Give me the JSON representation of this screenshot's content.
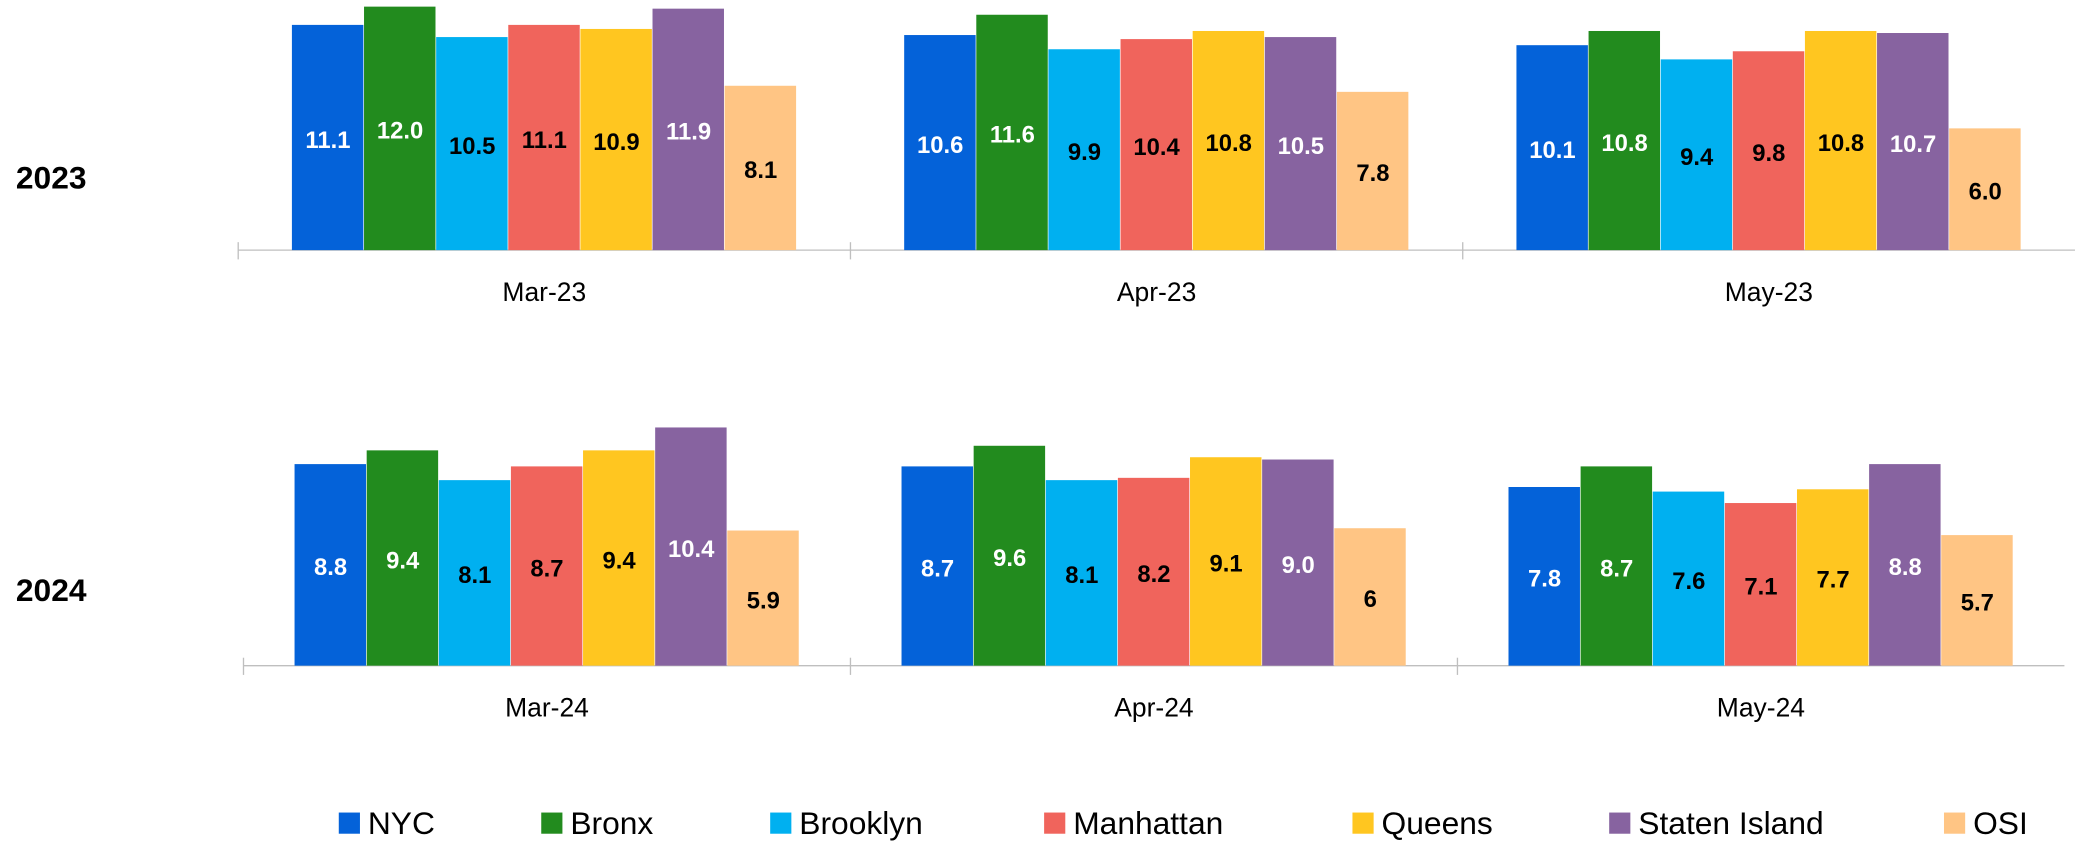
{
  "chart_data": [
    {
      "type": "bar",
      "title": "2023",
      "categories": [
        "Mar-23",
        "Apr-23",
        "May-23"
      ],
      "series": [
        {
          "name": "NYC",
          "color": "#0462D9",
          "values": [
            11.1,
            10.6,
            10.1
          ],
          "value_labels": [
            "11.1",
            "10.6",
            "10.1"
          ]
        },
        {
          "name": "Bronx",
          "color": "#228B1E",
          "values": [
            12.0,
            11.6,
            10.8
          ],
          "value_labels": [
            "12.0",
            "11.6",
            "10.8"
          ]
        },
        {
          "name": "Brooklyn",
          "color": "#00B0F0",
          "values": [
            10.5,
            9.9,
            9.4
          ],
          "value_labels": [
            "10.5",
            "9.9",
            "9.4"
          ]
        },
        {
          "name": "Manhattan",
          "color": "#F0645C",
          "values": [
            11.1,
            10.4,
            9.8
          ],
          "value_labels": [
            "11.1",
            "10.4",
            "9.8"
          ]
        },
        {
          "name": "Queens",
          "color": "#FFC620",
          "values": [
            10.9,
            10.8,
            10.8
          ],
          "value_labels": [
            "10.9",
            "10.8",
            "10.8"
          ]
        },
        {
          "name": "Staten Island",
          "color": "#8763A0",
          "values": [
            11.9,
            10.5,
            10.7
          ],
          "value_labels": [
            "11.9",
            "10.5",
            "10.7"
          ]
        },
        {
          "name": "OSI",
          "color": "#FFC584",
          "values": [
            8.1,
            7.8,
            6.0
          ],
          "value_labels": [
            "8.1",
            "7.8",
            "6.0"
          ]
        }
      ]
    },
    {
      "type": "bar",
      "title": "2024",
      "categories": [
        "Mar-24",
        "Apr-24",
        "May-24"
      ],
      "series": [
        {
          "name": "NYC",
          "color": "#0462D9",
          "values": [
            8.8,
            8.7,
            7.8
          ],
          "value_labels": [
            "8.8",
            "8.7",
            "7.8"
          ]
        },
        {
          "name": "Bronx",
          "color": "#228B1E",
          "values": [
            9.4,
            9.6,
            8.7
          ],
          "value_labels": [
            "9.4",
            "9.6",
            "8.7"
          ]
        },
        {
          "name": "Brooklyn",
          "color": "#00B0F0",
          "values": [
            8.1,
            8.1,
            7.6
          ],
          "value_labels": [
            "8.1",
            "8.1",
            "7.6"
          ]
        },
        {
          "name": "Manhattan",
          "color": "#F0645C",
          "values": [
            8.7,
            8.2,
            7.1
          ],
          "value_labels": [
            "8.7",
            "8.2",
            "7.1"
          ]
        },
        {
          "name": "Queens",
          "color": "#FFC620",
          "values": [
            9.4,
            9.1,
            7.7
          ],
          "value_labels": [
            "9.4",
            "9.1",
            "7.7"
          ]
        },
        {
          "name": "Staten Island",
          "color": "#8763A0",
          "values": [
            10.4,
            9.0,
            8.8
          ],
          "value_labels": [
            "10.4",
            "9.0",
            "8.8"
          ]
        },
        {
          "name": "OSI",
          "color": "#FFC584",
          "values": [
            5.9,
            6,
            5.7
          ],
          "value_labels": [
            "5.9",
            "6",
            "5.7"
          ]
        }
      ]
    }
  ]
}
